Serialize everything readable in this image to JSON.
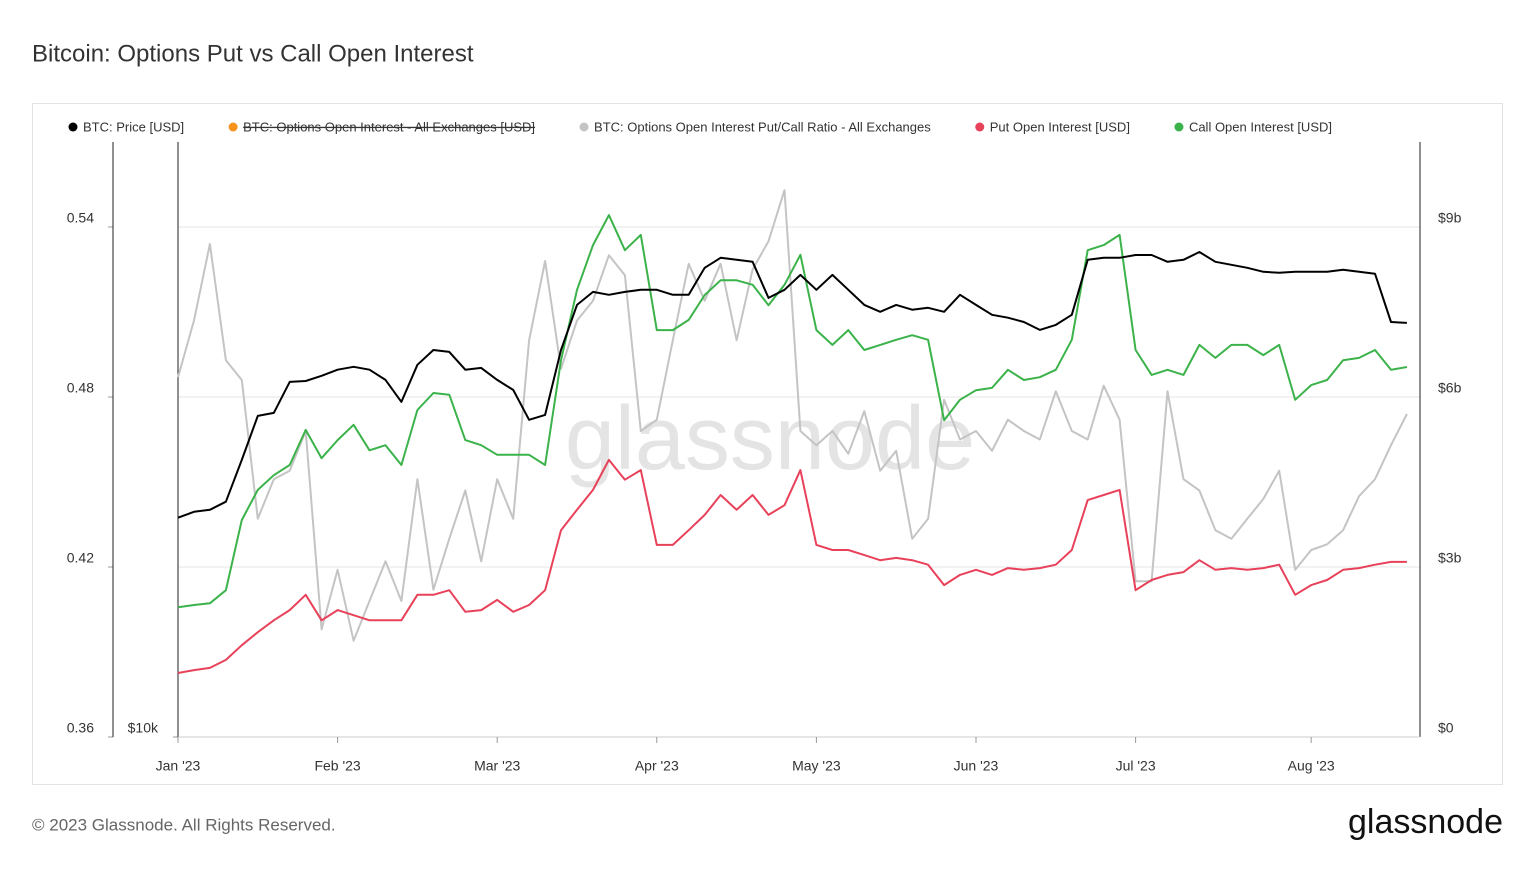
{
  "chart_data": {
    "type": "line",
    "title": "Bitcoin: Options Put vs Call Open Interest",
    "footer": "© 2023 Glassnode. All Rights Reserved.",
    "brand": "glassnode",
    "watermark": "glassnode",
    "categories": [
      "Jan '23",
      null,
      null,
      null,
      null,
      null,
      null,
      null,
      null,
      null,
      "Feb '23",
      null,
      null,
      null,
      null,
      null,
      null,
      null,
      null,
      null,
      "Mar '23",
      null,
      null,
      null,
      null,
      null,
      null,
      null,
      null,
      null,
      "Apr '23",
      null,
      null,
      null,
      null,
      null,
      null,
      null,
      null,
      null,
      "May '23",
      null,
      null,
      null,
      null,
      null,
      null,
      null,
      null,
      null,
      "Jun '23",
      null,
      null,
      null,
      null,
      null,
      null,
      null,
      null,
      null,
      "Jul '23",
      null,
      null,
      null,
      null,
      null,
      null,
      null,
      null,
      null,
      null,
      "Aug '23",
      null,
      null,
      null,
      null,
      null,
      null
    ],
    "ylim": [
      0.36,
      0.57
    ],
    "yticks": [
      0.36,
      0.42,
      0.48,
      0.54
    ],
    "y2lim": [
      0,
      10.5
    ],
    "y2ticks": [
      {
        "value": 0,
        "label": "$0"
      },
      {
        "value": 3,
        "label": "$3b"
      },
      {
        "value": 6,
        "label": "$6b"
      },
      {
        "value": 9,
        "label": "$9b"
      }
    ],
    "y3lim": [
      10000,
      40000
    ],
    "y3log": true,
    "y3ticks": [
      {
        "value": 10000,
        "label": "$10k"
      }
    ],
    "grid": true,
    "hidden_series": [
      {
        "name": "BTC: Options Open Interest - All Exchanges [USD]",
        "color": "#f7931a"
      }
    ],
    "series": [
      {
        "name": "BTC: Price [USD]",
        "color": "#000000",
        "axis": "y3",
        "values": [
          16670,
          16900,
          16980,
          17300,
          19070,
          21130,
          21280,
          22870,
          22920,
          23200,
          23530,
          23690,
          23530,
          22980,
          21830,
          23800,
          24640,
          24530,
          23530,
          23630,
          22980,
          22450,
          20940,
          21180,
          24640,
          27370,
          28210,
          28020,
          28210,
          28350,
          28350,
          28020,
          28020,
          29840,
          30540,
          30400,
          30260,
          27820,
          28350,
          29350,
          28350,
          29350,
          28350,
          27370,
          26930,
          27370,
          27060,
          27180,
          26930,
          28020,
          27370,
          26740,
          26560,
          26300,
          25820,
          26120,
          26740,
          30400,
          30540,
          30540,
          30740,
          30740,
          30260,
          30400,
          30960,
          30260,
          30050,
          29840,
          29560,
          29490,
          29560,
          29560,
          29560,
          29700,
          29560,
          29430,
          26300,
          26240
        ]
      },
      {
        "name": "BTC: Options Open Interest Put/Call Ratio - All Exchanges",
        "color": "#c4c4c4",
        "axis": "y",
        "values": [
          0.487,
          0.507,
          0.534,
          0.493,
          0.486,
          0.437,
          0.451,
          0.454,
          0.468,
          0.398,
          0.419,
          0.394,
          0.408,
          0.422,
          0.408,
          0.451,
          0.412,
          0.43,
          0.447,
          0.422,
          0.451,
          0.437,
          0.5,
          0.528,
          0.49,
          0.507,
          0.514,
          0.53,
          0.523,
          0.468,
          0.472,
          0.5,
          0.527,
          0.514,
          0.527,
          0.5,
          0.525,
          0.535,
          0.553,
          0.468,
          0.463,
          0.468,
          0.46,
          0.475,
          0.454,
          0.461,
          0.43,
          0.437,
          0.479,
          0.465,
          0.468,
          0.461,
          0.472,
          0.468,
          0.465,
          0.482,
          0.468,
          0.465,
          0.484,
          0.472,
          0.415,
          0.415,
          0.482,
          0.451,
          0.447,
          0.433,
          0.43,
          0.437,
          0.444,
          0.454,
          0.419,
          0.426,
          0.428,
          0.433,
          0.445,
          0.451,
          0.463,
          0.474
        ]
      },
      {
        "name": "Put Open Interest [USD]",
        "color": "#e8415a",
        "axis": "y2",
        "values": [
          1.13,
          1.18,
          1.22,
          1.36,
          1.62,
          1.85,
          2.06,
          2.24,
          2.51,
          2.06,
          2.24,
          2.15,
          2.06,
          2.06,
          2.06,
          2.51,
          2.51,
          2.59,
          2.21,
          2.24,
          2.42,
          2.21,
          2.33,
          2.59,
          3.65,
          4.01,
          4.36,
          4.89,
          4.54,
          4.71,
          3.39,
          3.39,
          3.65,
          3.92,
          4.27,
          4.01,
          4.27,
          3.92,
          4.09,
          4.71,
          3.39,
          3.3,
          3.3,
          3.21,
          3.12,
          3.16,
          3.12,
          3.04,
          2.68,
          2.86,
          2.95,
          2.86,
          2.98,
          2.95,
          2.98,
          3.04,
          3.3,
          4.18,
          4.27,
          4.36,
          2.59,
          2.77,
          2.86,
          2.91,
          3.12,
          2.95,
          2.98,
          2.95,
          2.98,
          3.04,
          2.51,
          2.68,
          2.77,
          2.95,
          2.98,
          3.04,
          3.09,
          3.09
        ]
      },
      {
        "name": "Call Open Interest [USD]",
        "color": "#3bb34a",
        "axis": "y2",
        "values": [
          2.29,
          2.33,
          2.36,
          2.59,
          3.83,
          4.36,
          4.62,
          4.8,
          5.42,
          4.92,
          5.24,
          5.51,
          5.06,
          5.15,
          4.8,
          5.77,
          6.07,
          6.04,
          5.24,
          5.15,
          4.98,
          4.98,
          4.98,
          4.8,
          6.65,
          7.89,
          8.68,
          9.21,
          8.59,
          8.86,
          7.18,
          7.18,
          7.36,
          7.8,
          8.06,
          8.06,
          7.98,
          7.62,
          7.98,
          8.51,
          7.18,
          6.92,
          7.18,
          6.83,
          6.92,
          7.01,
          7.09,
          7.01,
          5.59,
          5.95,
          6.12,
          6.16,
          6.48,
          6.3,
          6.35,
          6.48,
          7.01,
          8.59,
          8.68,
          8.86,
          6.83,
          6.39,
          6.48,
          6.39,
          6.92,
          6.69,
          6.92,
          6.92,
          6.74,
          6.92,
          5.95,
          6.21,
          6.3,
          6.65,
          6.69,
          6.83,
          6.48,
          6.53
        ]
      }
    ]
  }
}
